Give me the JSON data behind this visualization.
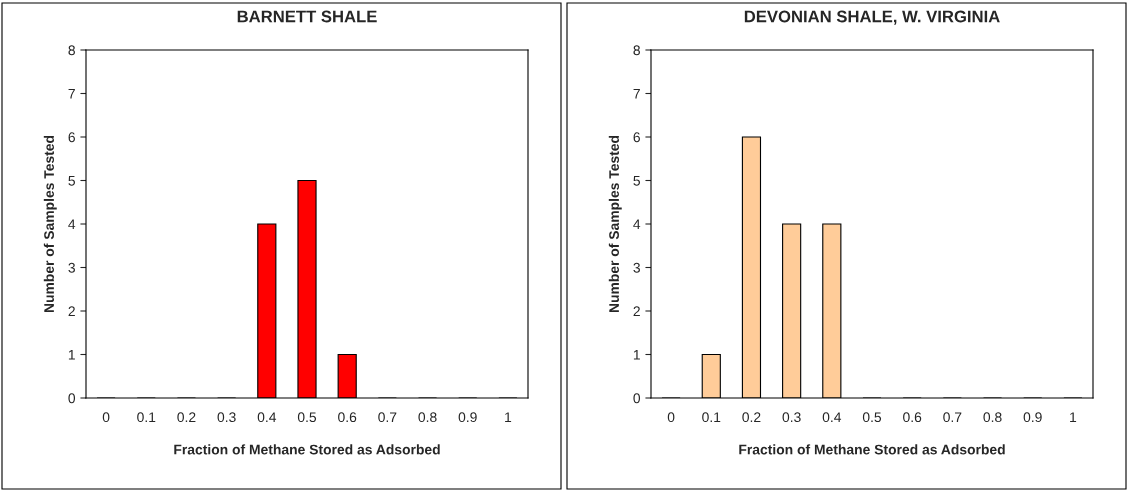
{
  "chart_data": [
    {
      "type": "bar",
      "title": "BARNETT SHALE",
      "xlabel": "Fraction of Methane Stored as Adsorbed",
      "ylabel": "Number of Samples Tested",
      "categories": [
        "0",
        "0.1",
        "0.2",
        "0.3",
        "0.4",
        "0.5",
        "0.6",
        "0.7",
        "0.8",
        "0.9",
        "1"
      ],
      "values": [
        0,
        0,
        0,
        0,
        4,
        5,
        1,
        0,
        0,
        0,
        0
      ],
      "color": "#ff0000",
      "ylim": [
        0,
        8
      ],
      "yticks": [
        0,
        1,
        2,
        3,
        4,
        5,
        6,
        7,
        8
      ],
      "grid": false,
      "legend": false
    },
    {
      "type": "bar",
      "title": "DEVONIAN SHALE, W. VIRGINIA",
      "xlabel": "Fraction of Methane Stored as Adsorbed",
      "ylabel": "Number of Samples Tested",
      "categories": [
        "0",
        "0.1",
        "0.2",
        "0.3",
        "0.4",
        "0.5",
        "0.6",
        "0.7",
        "0.8",
        "0.9",
        "1"
      ],
      "values": [
        0,
        1,
        6,
        4,
        4,
        0,
        0,
        0,
        0,
        0,
        0
      ],
      "color": "#ffcc99",
      "ylim": [
        0,
        8
      ],
      "yticks": [
        0,
        1,
        2,
        3,
        4,
        5,
        6,
        7,
        8
      ],
      "grid": false,
      "legend": false
    }
  ]
}
